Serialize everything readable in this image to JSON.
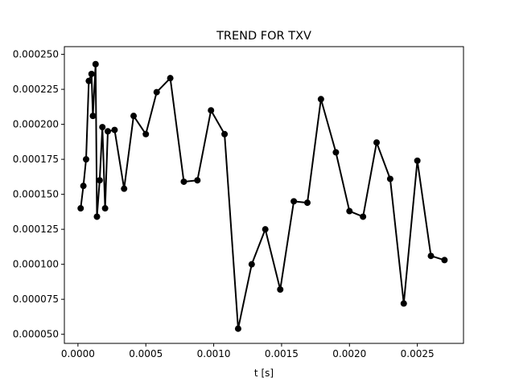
{
  "chart_data": {
    "type": "line",
    "title": "TREND FOR TXV",
    "xlabel": "t [s]",
    "ylabel": "",
    "xlim": [
      -0.0001,
      0.00284
    ],
    "ylim": [
      4.35e-05,
      0.0002555
    ],
    "x_ticks": [
      0.0,
      0.0005,
      0.001,
      0.0015,
      0.002,
      0.0025
    ],
    "x_tick_labels": [
      "0.0000",
      "0.0005",
      "0.0010",
      "0.0015",
      "0.0020",
      "0.0025"
    ],
    "y_ticks": [
      5e-05,
      7.5e-05,
      0.0001,
      0.000125,
      0.00015,
      0.000175,
      0.0002,
      0.000225,
      0.00025
    ],
    "y_tick_labels": [
      "0.000050",
      "0.000075",
      "0.000100",
      "0.000125",
      "0.000150",
      "0.000175",
      "0.000200",
      "0.000225",
      "0.000250"
    ],
    "grid": false,
    "series": [
      {
        "color": "#000000",
        "marker": "circle",
        "x": [
          2e-05,
          4e-05,
          6e-05,
          8e-05,
          0.0001,
          0.00011,
          0.00013,
          0.00014,
          0.00016,
          0.00018,
          0.0002,
          0.00022,
          0.00027,
          0.00034,
          0.00041,
          0.0005,
          0.00058,
          0.00068,
          0.00078,
          0.00088,
          0.00098,
          0.00108,
          0.00118,
          0.00128,
          0.00138,
          0.00149,
          0.00159,
          0.00169,
          0.00179,
          0.0019,
          0.002,
          0.0021,
          0.0022,
          0.0023,
          0.0024,
          0.0025,
          0.0026,
          0.0027
        ],
        "y": [
          0.00014,
          0.000156,
          0.000175,
          0.000231,
          0.000236,
          0.000206,
          0.000243,
          0.000134,
          0.00016,
          0.000198,
          0.00014,
          0.000195,
          0.000196,
          0.000154,
          0.000206,
          0.000193,
          0.000223,
          0.000233,
          0.000159,
          0.00016,
          0.00021,
          0.000193,
          5.4e-05,
          0.0001,
          0.000125,
          8.2e-05,
          0.000145,
          0.000144,
          0.000218,
          0.00018,
          0.000138,
          0.000134,
          0.000187,
          0.000161,
          7.2e-05,
          0.000174,
          0.000106,
          0.000103
        ]
      }
    ]
  }
}
